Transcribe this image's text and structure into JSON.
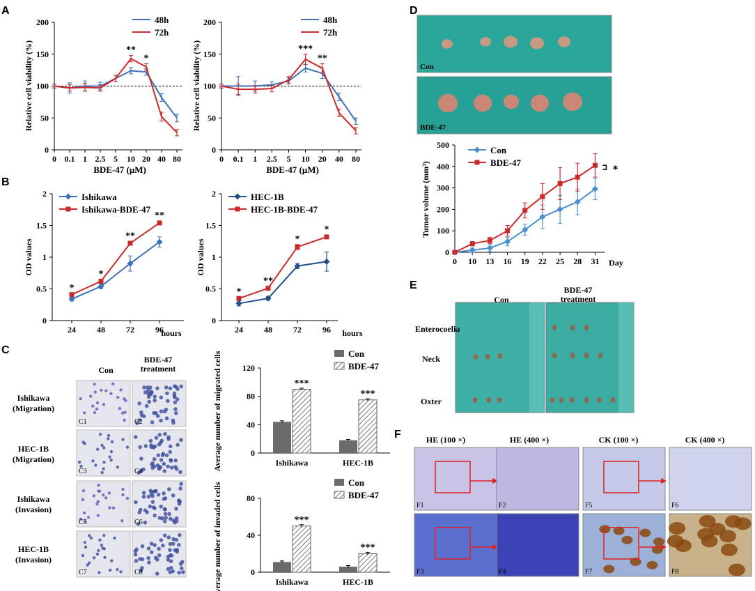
{
  "panel_labels": [
    "A",
    "B",
    "C",
    "D",
    "E",
    "F"
  ],
  "colors": {
    "blue": "#3d72b9",
    "red": "#cb2a2a",
    "bar_dark": "#6b6b6b",
    "teal": "#2aa69b",
    "tumor": "#c89a84"
  },
  "chart_data": [
    {
      "id": "A1",
      "type": "line",
      "title": "",
      "xlabel": "BDE-47 (μM)",
      "ylabel": "Relative cell viability (%)",
      "categories": [
        "0",
        "0.1",
        "1",
        "2.5",
        "5",
        "10",
        "20",
        "40",
        "80"
      ],
      "ylim": [
        0,
        200
      ],
      "yticks": [
        "0",
        "50",
        "100",
        "150",
        "200"
      ],
      "reference_line": 100,
      "series": [
        {
          "name": "48h",
          "color": "#3d72b9",
          "values": [
            100,
            97,
            100,
            100,
            112,
            124,
            122,
            82,
            50
          ],
          "errors": [
            3,
            8,
            8,
            6,
            5,
            5,
            5,
            6,
            6
          ]
        },
        {
          "name": "72h",
          "color": "#cb2a2a",
          "values": [
            100,
            97,
            98,
            97,
            112,
            143,
            130,
            52,
            27
          ],
          "errors": [
            3,
            5,
            6,
            5,
            5,
            5,
            5,
            7,
            5
          ]
        }
      ],
      "annotations": [
        {
          "index": 5,
          "text": "**"
        },
        {
          "index": 6,
          "text": "*"
        }
      ]
    },
    {
      "id": "A2",
      "type": "line",
      "title": "",
      "xlabel": "BDE-47 (μM)",
      "ylabel": "Relative cell viability (%)",
      "categories": [
        "0",
        "0.1",
        "1",
        "2.5",
        "5",
        "10",
        "20",
        "40",
        "80"
      ],
      "ylim": [
        0,
        200
      ],
      "yticks": [
        "0",
        "50",
        "100",
        "150",
        "200"
      ],
      "reference_line": 100,
      "series": [
        {
          "name": "48h",
          "color": "#3d72b9",
          "values": [
            100,
            100,
            100,
            102,
            108,
            128,
            120,
            83,
            45
          ],
          "errors": [
            3,
            15,
            8,
            5,
            5,
            6,
            8,
            6,
            5
          ]
        },
        {
          "name": "72h",
          "color": "#cb2a2a",
          "values": [
            100,
            95,
            95,
            96,
            110,
            142,
            128,
            58,
            30
          ],
          "errors": [
            3,
            8,
            6,
            5,
            5,
            8,
            7,
            6,
            5
          ]
        }
      ],
      "annotations": [
        {
          "index": 5,
          "text": "***"
        },
        {
          "index": 6,
          "text": "**"
        }
      ]
    },
    {
      "id": "B1",
      "type": "line",
      "xlabel": "hours",
      "ylabel": "OD values",
      "categories": [
        "24",
        "48",
        "72",
        "96"
      ],
      "ylim": [
        0,
        2
      ],
      "yticks": [
        "0",
        "0.5",
        "1",
        "1.5",
        "2"
      ],
      "series": [
        {
          "name": "Ishikawa",
          "color": "#3d72b9",
          "marker": "diamond",
          "values": [
            0.34,
            0.54,
            0.9,
            1.24
          ],
          "errors": [
            0.03,
            0.04,
            0.12,
            0.08
          ]
        },
        {
          "name": "Ishikawa-BDE-47",
          "color": "#cb2a2a",
          "marker": "square",
          "values": [
            0.41,
            0.62,
            1.22,
            1.54
          ],
          "errors": [
            0.02,
            0.03,
            0.03,
            0.03
          ]
        }
      ],
      "annotations": [
        {
          "index": 0,
          "text": "*"
        },
        {
          "index": 1,
          "text": "*"
        },
        {
          "index": 2,
          "text": "**"
        },
        {
          "index": 3,
          "text": "**"
        }
      ]
    },
    {
      "id": "B2",
      "type": "line",
      "xlabel": "hours",
      "ylabel": "OD values",
      "categories": [
        "24",
        "48",
        "72",
        "96"
      ],
      "ylim": [
        0,
        2
      ],
      "yticks": [
        "0",
        "0.5",
        "1",
        "1.5",
        "2"
      ],
      "series": [
        {
          "name": "HEC-1B",
          "color": "#1f4f86",
          "marker": "diamond",
          "values": [
            0.27,
            0.35,
            0.86,
            0.93
          ],
          "errors": [
            0.04,
            0.03,
            0.04,
            0.15
          ]
        },
        {
          "name": "HEC-1B-BDE-47",
          "color": "#cb2a2a",
          "marker": "square",
          "values": [
            0.35,
            0.51,
            1.16,
            1.32
          ],
          "errors": [
            0.02,
            0.03,
            0.04,
            0.03
          ]
        }
      ],
      "annotations": [
        {
          "index": 0,
          "text": "*"
        },
        {
          "index": 1,
          "text": "**"
        },
        {
          "index": 2,
          "text": "*"
        },
        {
          "index": 3,
          "text": "*"
        }
      ]
    },
    {
      "id": "C1",
      "type": "bar",
      "ylabel": "Average number of migrated cells",
      "categories": [
        "Ishikawa",
        "HEC-1B"
      ],
      "ylim": [
        0,
        120
      ],
      "yticks": [
        "0",
        "40",
        "80",
        "120"
      ],
      "series": [
        {
          "name": "Con",
          "pattern": "solid",
          "values": [
            44,
            18
          ],
          "errors": [
            1.5,
            1.2
          ]
        },
        {
          "name": "BDE-47",
          "pattern": "hatch",
          "values": [
            90,
            75
          ],
          "errors": [
            1.5,
            1.5
          ]
        }
      ],
      "annotations": [
        {
          "index": 0,
          "text": "***"
        },
        {
          "index": 1,
          "text": "***"
        }
      ]
    },
    {
      "id": "C2",
      "type": "bar",
      "ylabel": "Average number of invaded cells",
      "categories": [
        "Ishikawa",
        "HEC-1B"
      ],
      "ylim": [
        0,
        80
      ],
      "yticks": [
        "0",
        "40",
        "80"
      ],
      "series": [
        {
          "name": "Con",
          "pattern": "solid",
          "values": [
            11,
            6
          ],
          "errors": [
            1.2,
            1.2
          ]
        },
        {
          "name": "BDE-47",
          "pattern": "hatch",
          "values": [
            50,
            20
          ],
          "errors": [
            1.5,
            1.5
          ]
        }
      ],
      "annotations": [
        {
          "index": 0,
          "text": "***"
        },
        {
          "index": 1,
          "text": "***"
        }
      ]
    },
    {
      "id": "D",
      "type": "line",
      "xlabel": "Day",
      "ylabel": "Tumor volume (mm³)",
      "categories": [
        "0",
        "10",
        "13",
        "16",
        "19",
        "22",
        "25",
        "28",
        "31"
      ],
      "ylim": [
        0,
        500
      ],
      "yticks": [
        "0",
        "100",
        "200",
        "300",
        "400",
        "500"
      ],
      "series": [
        {
          "name": "Con",
          "color": "#4a8fd0",
          "marker": "diamond",
          "values": [
            0,
            10,
            20,
            50,
            105,
            165,
            200,
            235,
            295
          ],
          "errors": [
            0,
            10,
            15,
            20,
            25,
            55,
            65,
            60,
            50
          ]
        },
        {
          "name": "BDE-47",
          "color": "#cb2a2a",
          "marker": "square",
          "values": [
            0,
            40,
            55,
            100,
            195,
            260,
            320,
            350,
            405
          ],
          "errors": [
            0,
            10,
            15,
            25,
            35,
            60,
            75,
            65,
            55
          ]
        }
      ],
      "annotations": [
        {
          "text": "*"
        }
      ]
    }
  ],
  "panel_c": {
    "col_headers": [
      "Con",
      "BDE-47",
      "treatment"
    ],
    "row_labels": [
      [
        "Ishikawa",
        "(Migration)"
      ],
      [
        "HEC-1B",
        "(Migration)"
      ],
      [
        "Ishikawa",
        "(Invasion)"
      ],
      [
        "HEC-1B",
        "(Invasion)"
      ]
    ],
    "image_labels": [
      "C1",
      "C2",
      "C3",
      "C4",
      "C5",
      "C6",
      "C7",
      "C8"
    ]
  },
  "panel_d": {
    "photo_labels": [
      "Con",
      "BDE-47"
    ]
  },
  "panel_e": {
    "col_headers": [
      "Con",
      "BDE-47",
      "treatment"
    ],
    "row_labels": [
      "Enterocoelia",
      "Neck",
      "Oxter"
    ]
  },
  "panel_f": {
    "col_headers": [
      "HE (100 ×)",
      "HE (400 ×)",
      "CK (100 ×)",
      "CK (400 ×)"
    ],
    "image_labels": [
      "F1",
      "F2",
      "F5",
      "F6",
      "F3",
      "F4",
      "F7",
      "F8"
    ]
  }
}
